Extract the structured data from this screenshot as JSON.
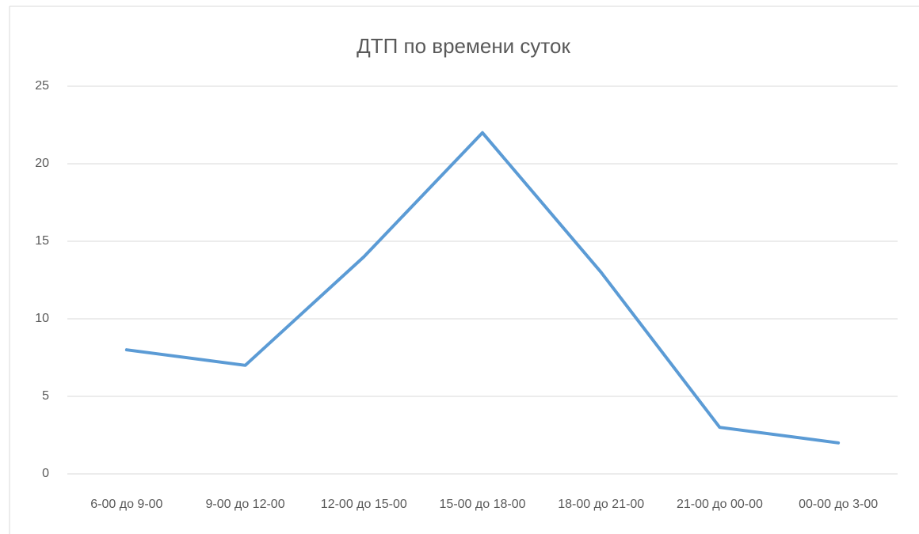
{
  "chart_data": {
    "type": "line",
    "title": "ДТП по времени суток",
    "categories": [
      "6-00 до 9-00",
      "9-00 до 12-00",
      "12-00 до 15-00",
      "15-00 до 18-00",
      "18-00 до 21-00",
      "21-00 до 00-00",
      "00-00 до 3-00"
    ],
    "values": [
      8,
      7,
      14,
      22,
      13,
      3,
      2
    ],
    "color": "#5b9bd5",
    "ylim": [
      0,
      25
    ],
    "yticks": [
      0,
      5,
      10,
      15,
      20,
      25
    ],
    "grid": true
  }
}
